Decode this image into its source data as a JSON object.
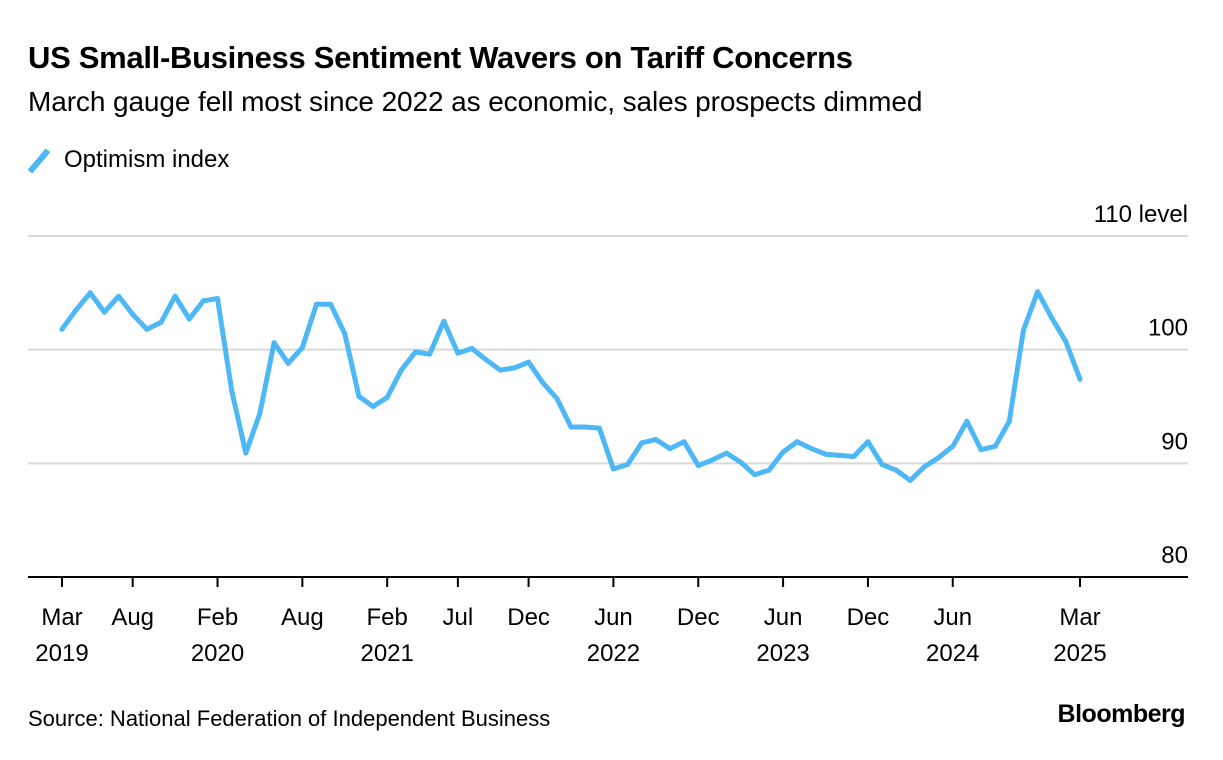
{
  "header": {
    "title": "US Small-Business Sentiment Wavers on Tariff Concerns",
    "subtitle": "March gauge fell most since 2022 as economic, sales prospects dimmed"
  },
  "legend": {
    "items": [
      {
        "label": "Optimism index",
        "color": "#4DB8F5"
      }
    ]
  },
  "footer": {
    "source": "Source: National Federation of Independent Business",
    "brand": "Bloomberg"
  },
  "chart_data": {
    "type": "line",
    "title": "US Small-Business Sentiment Wavers on Tariff Concerns",
    "subtitle": "March gauge fell most since 2022 as economic, sales prospects dimmed",
    "xlabel": "",
    "ylabel": "level",
    "ylim": [
      80,
      110
    ],
    "yticks": [
      {
        "value": 110,
        "label": "110 level"
      },
      {
        "value": 100,
        "label": "100"
      },
      {
        "value": 90,
        "label": "90"
      },
      {
        "value": 80,
        "label": "80"
      }
    ],
    "grid": true,
    "y_axis_side": "right",
    "legend_position": "top-left",
    "x_range": [
      "2019-03",
      "2025-03"
    ],
    "xticks": [
      {
        "date": "2019-03",
        "month": "Mar",
        "year": "2019"
      },
      {
        "date": "2019-08",
        "month": "Aug",
        "year": ""
      },
      {
        "date": "2020-02",
        "month": "Feb",
        "year": "2020"
      },
      {
        "date": "2020-08",
        "month": "Aug",
        "year": ""
      },
      {
        "date": "2021-02",
        "month": "Feb",
        "year": "2021"
      },
      {
        "date": "2021-07",
        "month": "Jul",
        "year": ""
      },
      {
        "date": "2021-12",
        "month": "Dec",
        "year": ""
      },
      {
        "date": "2022-06",
        "month": "Jun",
        "year": "2022"
      },
      {
        "date": "2022-12",
        "month": "Dec",
        "year": ""
      },
      {
        "date": "2023-06",
        "month": "Jun",
        "year": "2023"
      },
      {
        "date": "2023-12",
        "month": "Dec",
        "year": ""
      },
      {
        "date": "2024-06",
        "month": "Jun",
        "year": "2024"
      },
      {
        "date": "2025-03",
        "month": "Mar",
        "year": "2025"
      }
    ],
    "series": [
      {
        "name": "Optimism index",
        "color": "#4DB8F5",
        "start": "2019-03",
        "frequency": "monthly",
        "values": [
          101.8,
          103.5,
          105.0,
          103.3,
          104.7,
          103.1,
          101.8,
          102.4,
          104.7,
          102.7,
          104.3,
          104.5,
          96.4,
          90.9,
          94.4,
          100.6,
          98.8,
          100.2,
          104.0,
          104.0,
          101.4,
          95.9,
          95.0,
          95.8,
          98.2,
          99.8,
          99.6,
          102.5,
          99.7,
          100.1,
          99.1,
          98.2,
          98.4,
          98.9,
          97.1,
          95.7,
          93.2,
          93.2,
          93.1,
          89.5,
          89.9,
          91.8,
          92.1,
          91.3,
          91.9,
          89.8,
          90.3,
          90.9,
          90.1,
          89.0,
          89.4,
          91.0,
          91.9,
          91.3,
          90.8,
          90.7,
          90.6,
          91.9,
          89.9,
          89.4,
          88.5,
          89.7,
          90.5,
          91.5,
          93.7,
          91.2,
          91.5,
          93.7,
          101.7,
          105.1,
          102.8,
          100.7,
          97.4
        ]
      }
    ]
  }
}
